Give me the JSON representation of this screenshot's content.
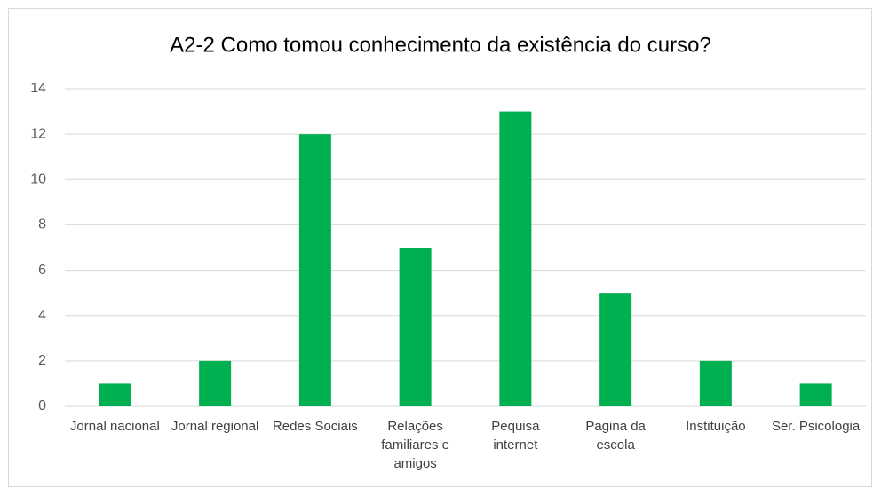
{
  "chart_data": {
    "type": "bar",
    "title": "A2-2 Como tomou conhecimento da existência do curso?",
    "categories": [
      "Jornal nacional",
      "Jornal regional",
      "Redes Sociais",
      "Relações familiares e amigos",
      "Pequisa internet",
      "Pagina da escola",
      "Instituição",
      "Ser. Psicologia"
    ],
    "values": [
      1,
      2,
      12,
      7,
      13,
      5,
      2,
      1
    ],
    "color": "#00b050",
    "ylim": [
      0,
      14
    ],
    "yticks": [
      0,
      2,
      4,
      6,
      8,
      10,
      12,
      14
    ],
    "grid": true
  }
}
